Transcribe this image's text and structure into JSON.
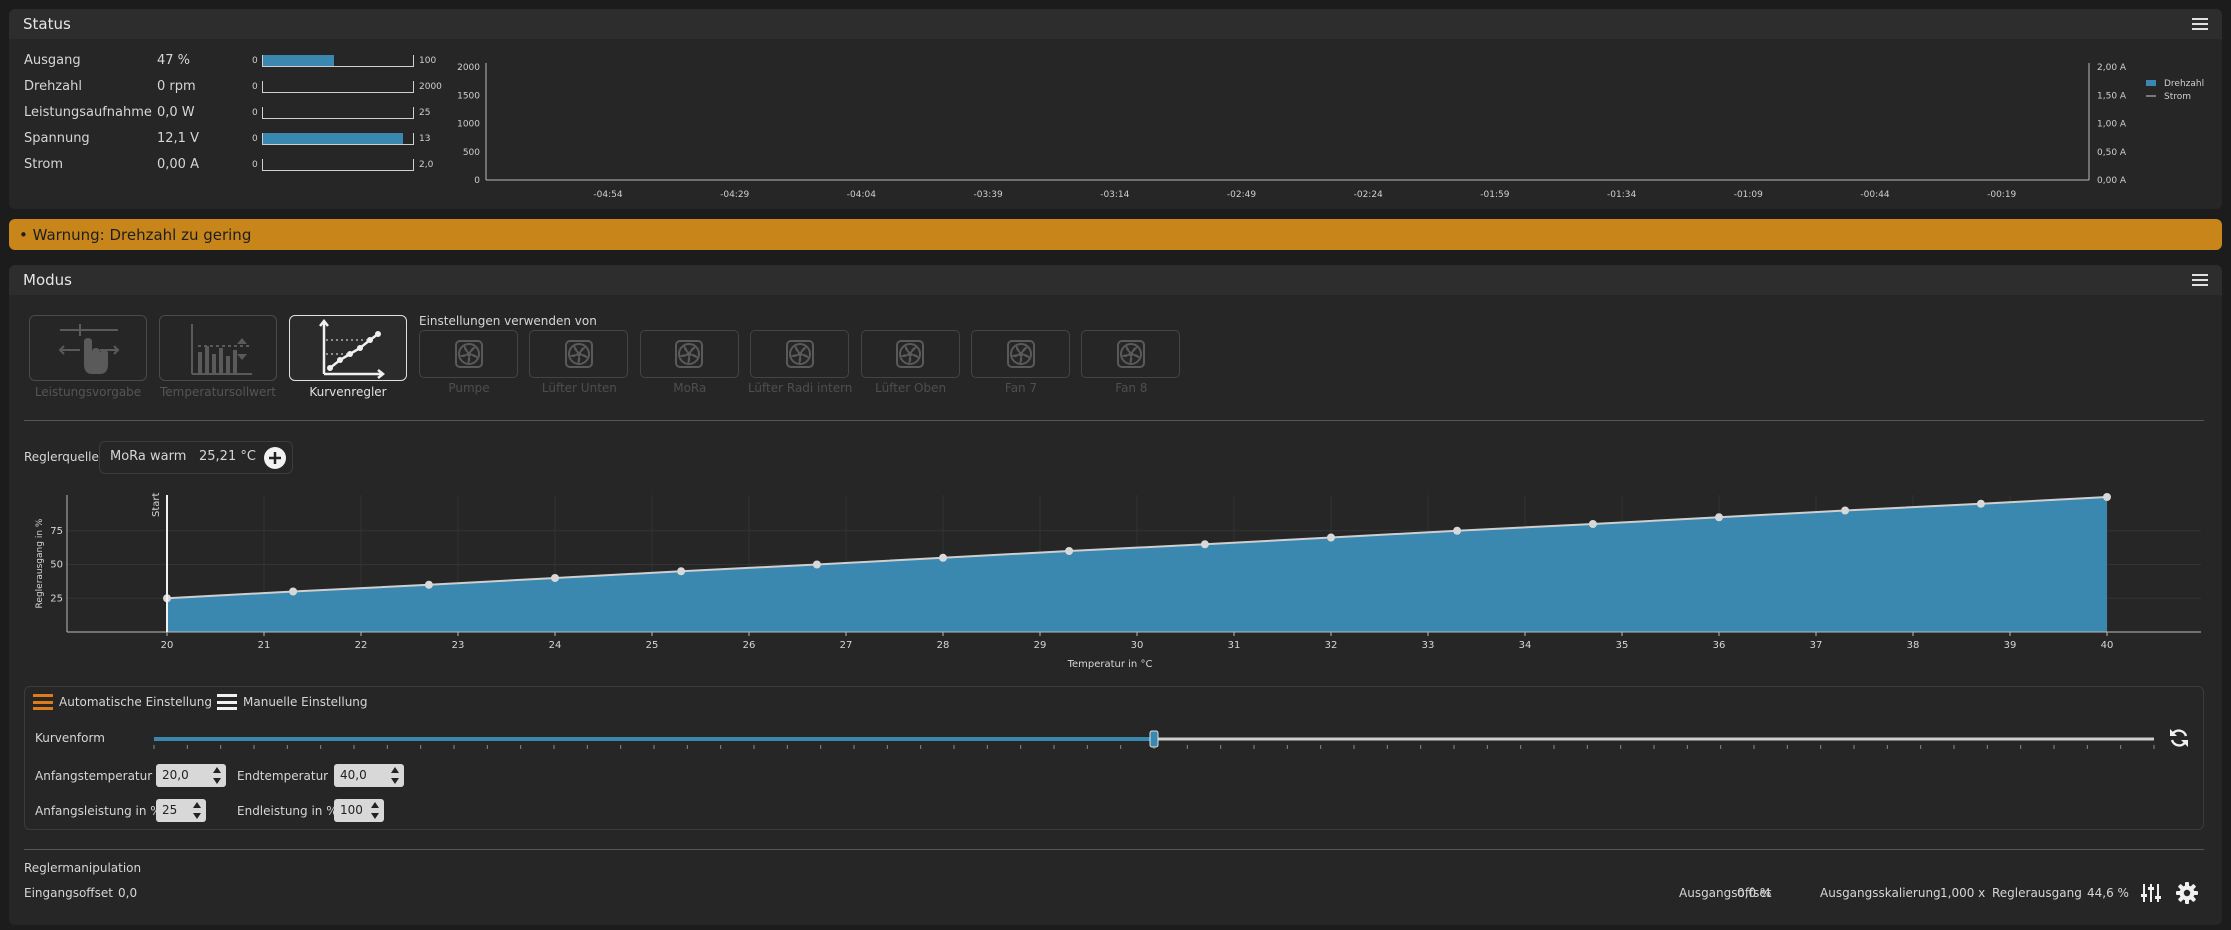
{
  "status": {
    "title": "Status",
    "rows": [
      {
        "label": "Ausgang",
        "value": "47 %",
        "min": "0",
        "max": "100",
        "fraction": 0.47
      },
      {
        "label": "Drehzahl",
        "value": "0 rpm",
        "min": "0",
        "max": "2000",
        "fraction": 0
      },
      {
        "label": "Leistungsaufnahme",
        "value": "0,0 W",
        "min": "0",
        "max": "25",
        "fraction": 0
      },
      {
        "label": "Spannung",
        "value": "12,1 V",
        "min": "0",
        "max": "13",
        "fraction": 0.93
      },
      {
        "label": "Strom",
        "value": "0,00 A",
        "min": "0",
        "max": "2,0",
        "fraction": 0
      }
    ]
  },
  "chart_data": [
    {
      "type": "line",
      "left_ticks": [
        "2000",
        "1500",
        "1000",
        "500",
        "0"
      ],
      "right_ticks": [
        "2,00 A",
        "1,50 A",
        "1,00 A",
        "0,50 A",
        "0,00 A"
      ],
      "x_ticks": [
        "-04:54",
        "-04:29",
        "-04:04",
        "-03:39",
        "-03:14",
        "-02:49",
        "-02:24",
        "-01:59",
        "-01:34",
        "-01:09",
        "-00:44",
        "-00:19"
      ],
      "legend": [
        "Drehzahl",
        "Strom"
      ],
      "legend_position": "top-right",
      "series": [
        {
          "name": "Drehzahl",
          "values": []
        },
        {
          "name": "Strom",
          "values": []
        }
      ]
    },
    {
      "type": "area",
      "xlabel": "Temperatur in °C",
      "ylabel": "Reglerausgang in %",
      "x_ticks": [
        "20",
        "21",
        "22",
        "23",
        "24",
        "25",
        "26",
        "27",
        "28",
        "29",
        "30",
        "31",
        "32",
        "33",
        "34",
        "35",
        "36",
        "37",
        "38",
        "39",
        "40"
      ],
      "y_ticks": [
        "25",
        "50",
        "75"
      ],
      "xlim": [
        20,
        40
      ],
      "ylim": [
        0,
        100
      ],
      "start_label": "Start",
      "start_x": 20,
      "series": [
        {
          "x": [
            20,
            21.3,
            22.7,
            24,
            25.3,
            26.7,
            28,
            29.3,
            30.7,
            32,
            33.3,
            34.7,
            36,
            37.3,
            38.7,
            40
          ],
          "y": [
            25,
            30,
            35,
            40,
            45,
            50,
            55,
            60,
            65,
            70,
            75,
            80,
            85,
            90,
            95,
            100
          ]
        }
      ],
      "fill_color": "#3a87b0"
    }
  ],
  "warning": {
    "text": "• Warnung: Drehzahl zu gering"
  },
  "modus": {
    "title": "Modus",
    "modes": [
      {
        "label": "Leistungsvorgabe",
        "icon": "slider-hand-icon",
        "active": false
      },
      {
        "label": "Temperatursollwert",
        "icon": "bar-target-icon",
        "active": false
      },
      {
        "label": "Kurvenregler",
        "icon": "curve-icon",
        "active": true
      }
    ],
    "use_settings_from": "Einstellungen verwenden von",
    "fans": [
      "Pumpe",
      "Lüfter Unten",
      "MoRa",
      "Lüfter Radi intern",
      "Lüfter Oben",
      "Fan 7",
      "Fan 8"
    ],
    "source_label": "Reglerquelle",
    "source_name": "MoRa warm",
    "source_value": "25,21 °C",
    "auto_label": "Automatische Einstellung",
    "manual_label": "Manuelle Einstellung",
    "curve_label": "Kurvenform",
    "curve_fraction": 0.5,
    "start_temp_label": "Anfangstemperatur",
    "start_temp": "20,0",
    "end_temp_label": "Endtemperatur",
    "end_temp": "40,0",
    "start_power_label": "Anfangsleistung in %",
    "start_power": "25",
    "end_power_label": "Endleistung in %",
    "end_power": "100",
    "manip_title": "Reglermanipulation",
    "input_offset_label": "Eingangsoffset",
    "input_offset": "0,0",
    "output_offset_label": "Ausgangsoffset",
    "output_offset": "0,0 %",
    "output_scale_label": "Ausgangsskalierung",
    "output_scale": "1,000 x",
    "output_label": "Reglerausgang",
    "output_value": "44,6 %"
  },
  "colors": {
    "accent": "#3a87b0",
    "warning": "#c8861a",
    "orange": "#e07b1a"
  }
}
